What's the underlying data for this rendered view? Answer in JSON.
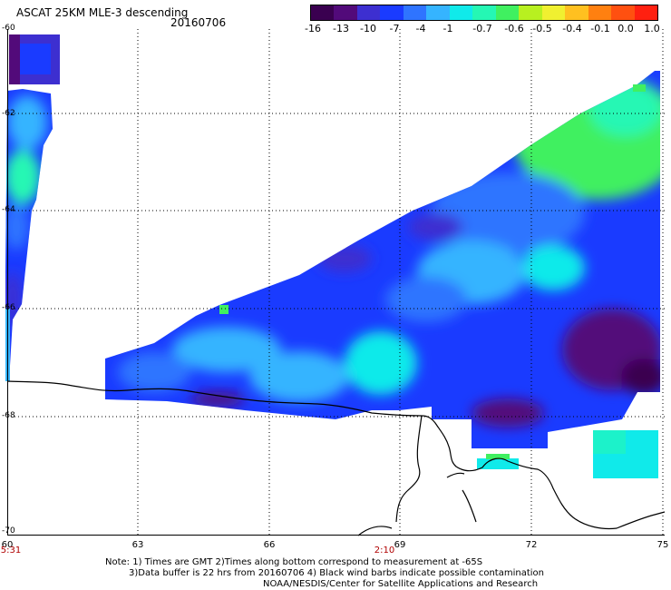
{
  "header": {
    "title": "ASCAT 25KM MLE-3 descending",
    "date": "20160706"
  },
  "colorbar": {
    "colors": [
      "#3a0050",
      "#520a7a",
      "#3d2fd0",
      "#1a3bff",
      "#2f74ff",
      "#35b4ff",
      "#10eaea",
      "#25f7b4",
      "#40f060",
      "#b8f020",
      "#f0f030",
      "#ffc020",
      "#ff8010",
      "#ff5010",
      "#ff2010"
    ],
    "labels": [
      "-16",
      "-13",
      "-10",
      "-7",
      "-4",
      "-1",
      "-0.7",
      "-0.6",
      "-0.5",
      "-0.4",
      "-0.1",
      "0.0",
      "1.0"
    ]
  },
  "axes": {
    "lat_labels": [
      "-60",
      "-62",
      "-64",
      "-66",
      "-68",
      "-70"
    ],
    "lon_labels": [
      "60",
      "63",
      "66",
      "69",
      "72",
      "75"
    ],
    "time_labels": [
      "5:31",
      "2:10"
    ]
  },
  "notes": {
    "line1": "Note: 1) Times are GMT 2)Times along bottom correspond to measurement at -65S",
    "line2": "3)Data buffer is 22 hrs from 20160706 4) Black wind barbs indicate possible contamination",
    "line3": "NOAA/NESDIS/Center for Satellite Applications and Research"
  }
}
